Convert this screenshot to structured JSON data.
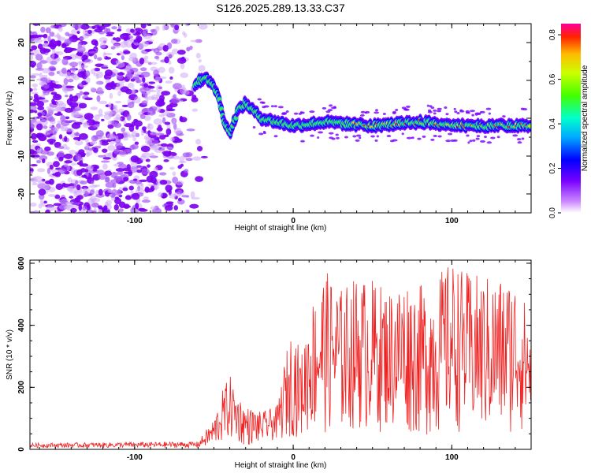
{
  "title": "S126.2025.289.13.33.C37",
  "colors": {
    "snr_line": "#ee2222",
    "grid": "#000000"
  },
  "chart_data": [
    {
      "type": "heatmap",
      "name": "spectrogram",
      "xlabel": "Height of straight line (km)",
      "ylabel": "Frequency (Hz)",
      "xlim": [
        -166,
        150
      ],
      "ylim": [
        -25,
        25
      ],
      "xticks": [
        -100,
        0,
        100
      ],
      "yticks": [
        -20,
        -10,
        0,
        10,
        20
      ],
      "colorbar": {
        "label": "Normalized spectral amplitude",
        "range": [
          0.0,
          0.85
        ],
        "ticks": [
          0.0,
          0.2,
          0.4,
          0.6,
          0.8
        ],
        "colormap": "rainbow"
      },
      "noise_region_x": [
        -166,
        -62
      ],
      "ridge": {
        "description_points_x": [
          -62,
          -55,
          -48,
          -44,
          -40,
          -35,
          -30,
          -20,
          0,
          20,
          50,
          80,
          110,
          150
        ],
        "frequency_hz": [
          9,
          11,
          7,
          0,
          -4,
          2,
          4,
          0,
          -2,
          -1,
          -2,
          -1,
          -2,
          -2
        ]
      }
    },
    {
      "type": "line",
      "name": "snr",
      "xlabel": "Height of straight line (km)",
      "ylabel": "SNR (10 * v/v)",
      "xlim": [
        -166,
        150
      ],
      "ylim": [
        0,
        610
      ],
      "xticks": [
        -100,
        0,
        100
      ],
      "yticks": [
        0,
        200,
        400,
        600
      ],
      "envelope": {
        "x": [
          -166,
          -60,
          -50,
          -44,
          -40,
          -35,
          -30,
          -20,
          -10,
          -5,
          0,
          5,
          10,
          20,
          30,
          40,
          50,
          60,
          70,
          80,
          90,
          100,
          110,
          120,
          130,
          140,
          150
        ],
        "max": [
          20,
          25,
          100,
          200,
          240,
          180,
          140,
          120,
          140,
          300,
          410,
          300,
          460,
          580,
          520,
          560,
          550,
          520,
          560,
          530,
          560,
          610,
          570,
          560,
          560,
          560,
          430
        ],
        "min": [
          5,
          5,
          10,
          20,
          30,
          20,
          10,
          20,
          30,
          30,
          40,
          40,
          50,
          50,
          50,
          60,
          50,
          60,
          50,
          40,
          40,
          60,
          50,
          40,
          40,
          50,
          60
        ]
      }
    }
  ]
}
